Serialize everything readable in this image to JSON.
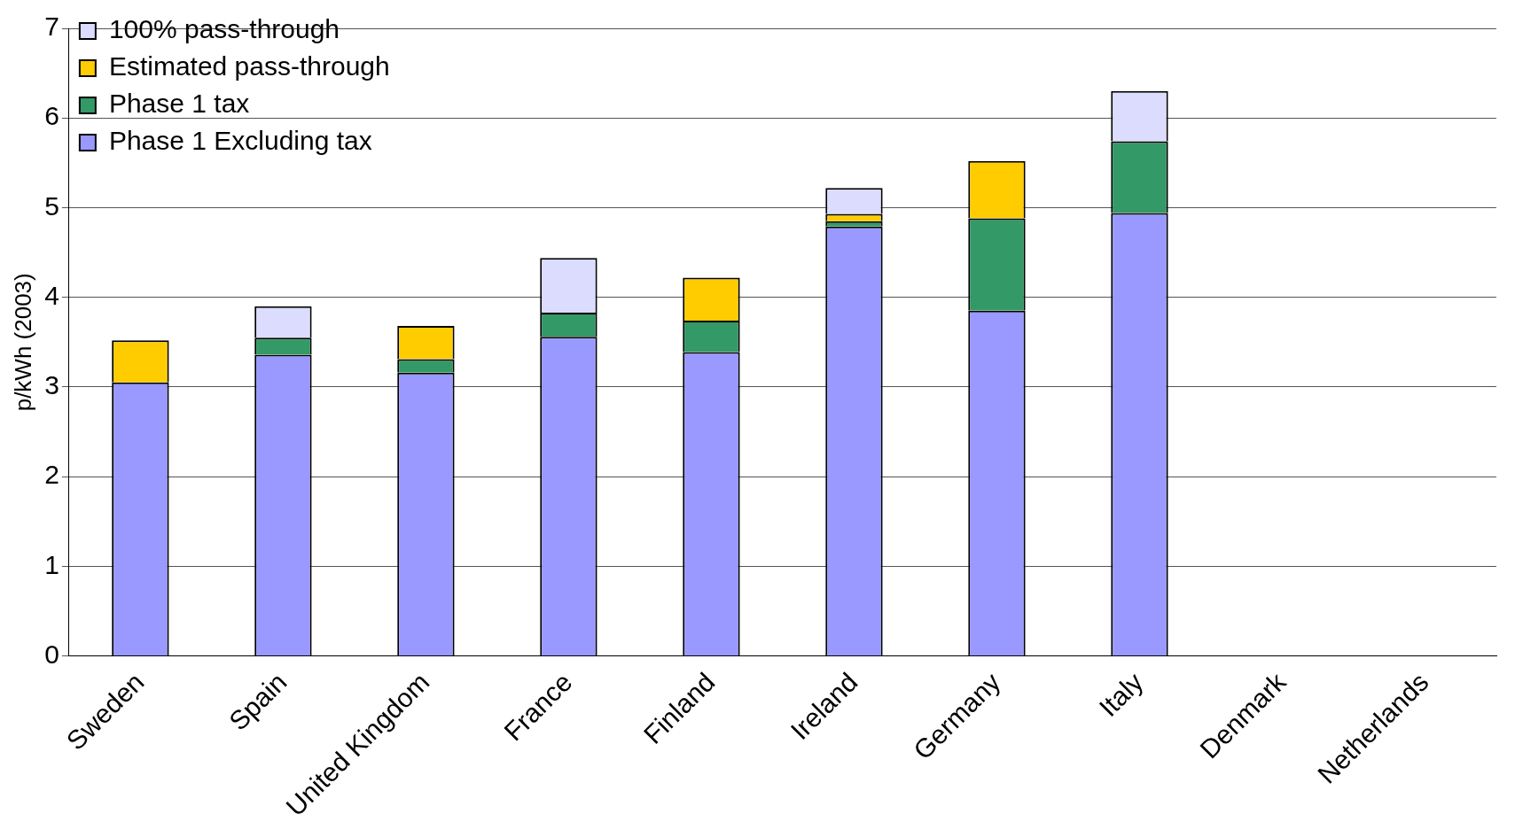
{
  "chart_data": {
    "type": "bar",
    "ylabel": "p/kWh (2003)",
    "categories": [
      "Sweden",
      "Spain",
      "United Kingdom",
      "France",
      "Finland",
      "Ireland",
      "Germany",
      "Italy",
      "Denmark",
      "Netherlands"
    ],
    "stacked": true,
    "ylim": [
      0,
      7
    ],
    "yticks": [
      0,
      1,
      2,
      3,
      4,
      5,
      6,
      7
    ],
    "grid": "y",
    "legend": "top left",
    "series": [
      {
        "name": "Phase 1 Excluding tax",
        "color": "#9999ff",
        "values": [
          3.05,
          3.36,
          3.16,
          3.56,
          3.39,
          4.79,
          3.85,
          4.94,
          null,
          null
        ]
      },
      {
        "name": "Phase 1 tax",
        "color": "#339966",
        "values": [
          null,
          0.19,
          0.15,
          0.27,
          0.35,
          0.06,
          1.03,
          0.8,
          null,
          null
        ]
      },
      {
        "name": "Estimated pass-through",
        "color": "#ffcc00",
        "values": [
          0.47,
          null,
          0.37,
          null,
          0.48,
          0.08,
          0.64,
          null,
          null,
          null
        ]
      },
      {
        "name": "100% pass-through",
        "color": "#dcdcff",
        "values": [
          null,
          0.35,
          null,
          0.61,
          null,
          0.29,
          null,
          0.56,
          null,
          null
        ]
      }
    ]
  }
}
